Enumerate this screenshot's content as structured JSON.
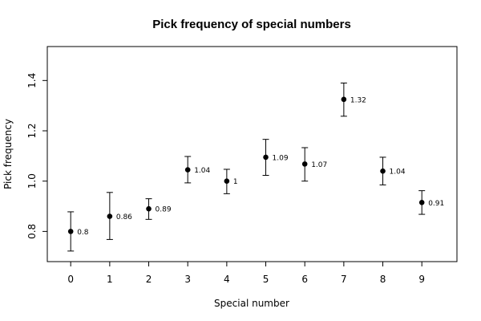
{
  "chart_data": {
    "type": "scatter",
    "title": "Pick frequency of special numbers",
    "xlabel": "Special number",
    "ylabel": "Pick frequency",
    "x": [
      0,
      1,
      2,
      3,
      4,
      5,
      6,
      7,
      8,
      9
    ],
    "y": [
      0.8,
      0.86,
      0.89,
      1.045,
      1.0,
      1.095,
      1.068,
      1.325,
      1.04,
      0.915
    ],
    "y_lower": [
      0.722,
      0.768,
      0.848,
      0.993,
      0.95,
      1.023,
      1.0,
      1.258,
      0.985,
      0.868
    ],
    "y_upper": [
      0.878,
      0.955,
      0.93,
      1.098,
      1.047,
      1.166,
      1.133,
      1.39,
      1.095,
      0.962
    ],
    "point_labels": [
      "0.8",
      "0.86",
      "0.89",
      "1.04",
      "1",
      "1.09",
      "1.07",
      "1.32",
      "1.04",
      "0.91"
    ],
    "x_ticks": [
      "0",
      "1",
      "2",
      "3",
      "4",
      "5",
      "6",
      "7",
      "8",
      "9"
    ],
    "y_ticks": [
      "0.8",
      "1.0",
      "1.2",
      "1.4"
    ],
    "y_tick_values": [
      0.8,
      1.0,
      1.2,
      1.4
    ],
    "xlim": [
      -0.6,
      9.9
    ],
    "ylim": [
      0.68,
      1.535
    ],
    "grid": false,
    "error_bars": true,
    "marker_color": "#000000"
  }
}
